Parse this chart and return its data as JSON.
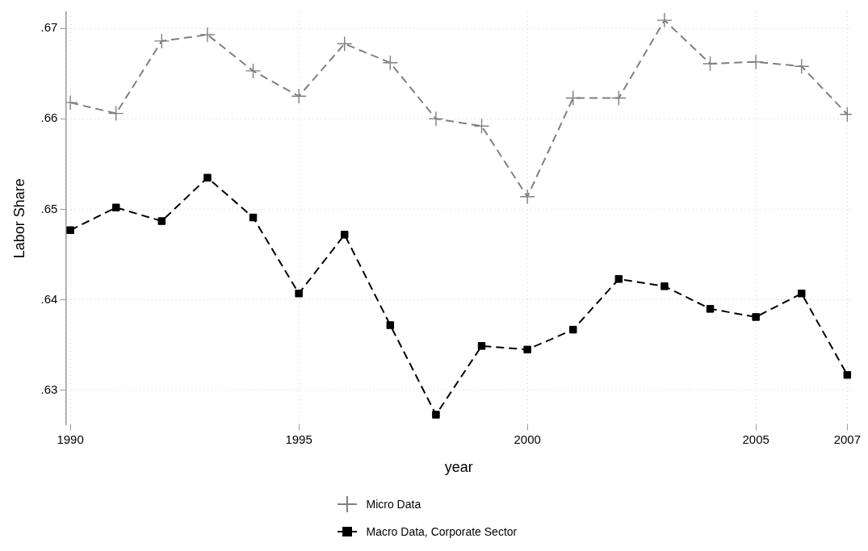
{
  "chart_data": {
    "type": "line",
    "xlabel": "year",
    "ylabel": "Labor Share",
    "x": [
      1990,
      1991,
      1992,
      1993,
      1994,
      1995,
      1996,
      1997,
      1998,
      1999,
      2000,
      2001,
      2002,
      2003,
      2004,
      2005,
      2006,
      2007
    ],
    "series": [
      {
        "name": "Micro Data",
        "color": "#808080",
        "marker": "cross",
        "line_style": "dashed",
        "values": [
          0.6618,
          0.6606,
          0.6686,
          0.6693,
          0.6653,
          0.6625,
          0.6683,
          0.6662,
          0.66,
          0.6592,
          0.6514,
          0.6623,
          0.6623,
          0.6709,
          0.6661,
          0.6663,
          0.6658,
          0.6605
        ]
      },
      {
        "name": "Macro Data, Corporate Sector",
        "color": "#000000",
        "marker": "square",
        "line_style": "dashed",
        "values": [
          0.6477,
          0.6502,
          0.6487,
          0.6535,
          0.6491,
          0.6407,
          0.6472,
          0.6372,
          0.6273,
          0.6349,
          0.6345,
          0.6367,
          0.6423,
          0.6415,
          0.639,
          0.6381,
          0.6407,
          0.6317
        ]
      }
    ],
    "xlim": [
      1989.9,
      2007.1
    ],
    "ylim": [
      0.6262,
      0.6718
    ],
    "xticks": [
      1990,
      1995,
      2000,
      2005,
      2007
    ],
    "yticks": [
      {
        "value": 0.63,
        "label": ".63"
      },
      {
        "value": 0.64,
        "label": ".64"
      },
      {
        "value": 0.65,
        "label": ".65"
      },
      {
        "value": 0.66,
        "label": ".66"
      },
      {
        "value": 0.67,
        "label": ".67"
      }
    ],
    "grid": true,
    "legend": "bottom"
  }
}
